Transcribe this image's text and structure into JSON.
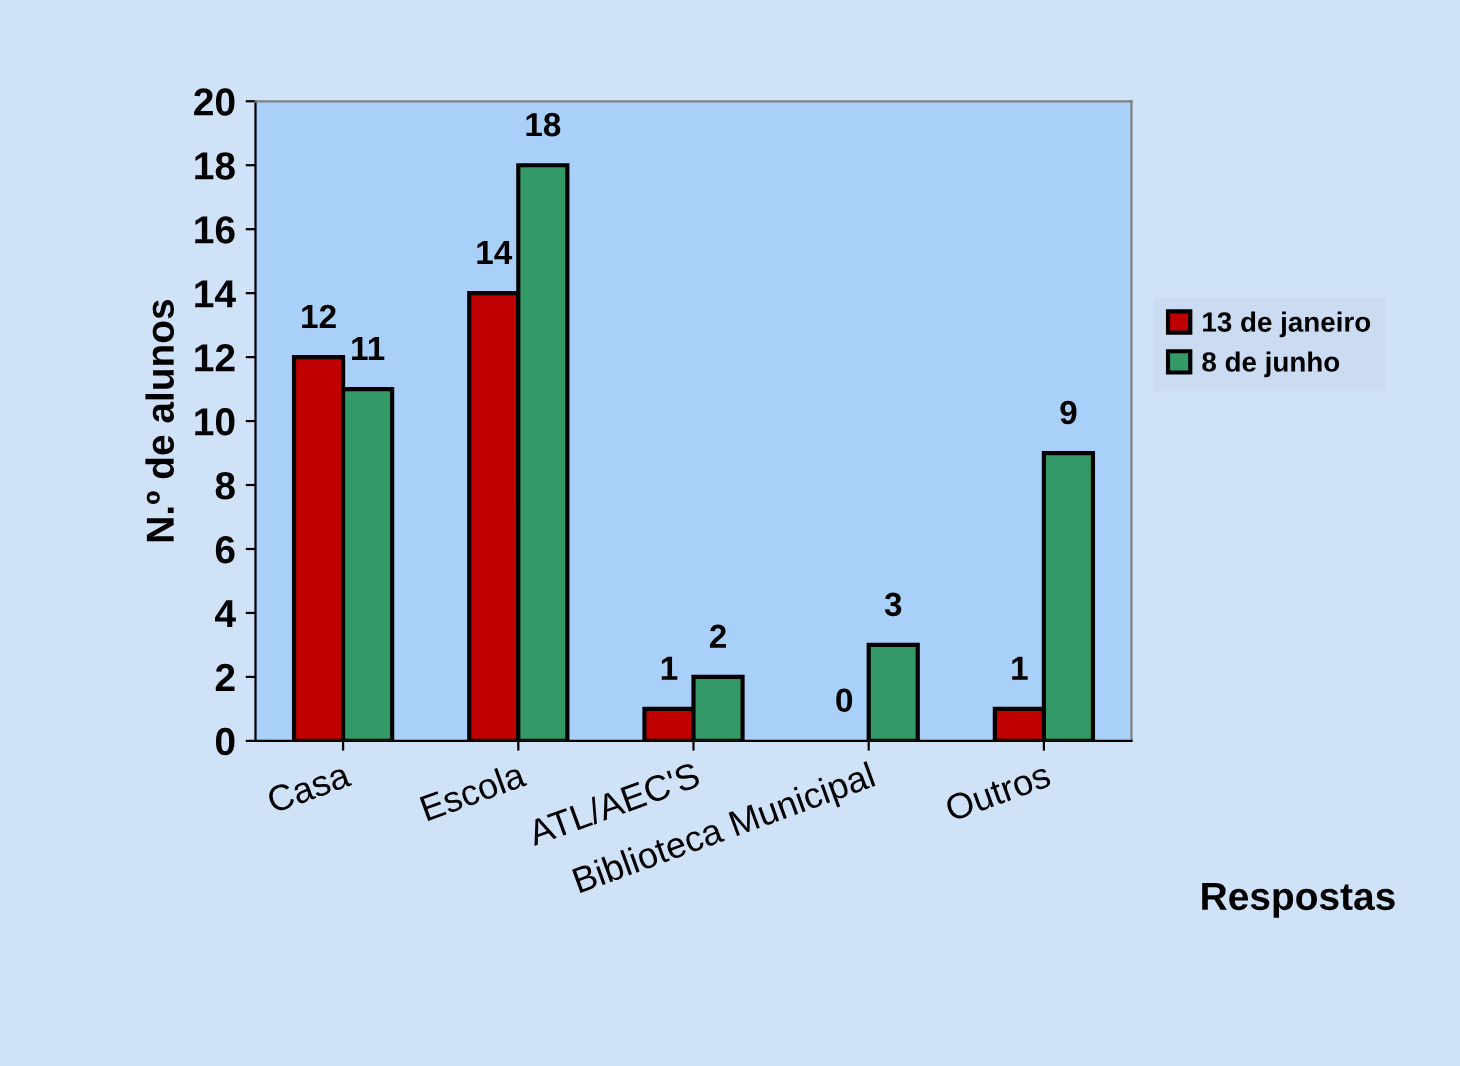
{
  "chart_data": {
    "type": "bar",
    "xlabel": "Respostas",
    "ylabel": "N.º de alunos",
    "categories": [
      "Casa",
      "Escola",
      "ATL/AEC'S",
      "Biblioteca Municipal",
      "Outros"
    ],
    "series": [
      {
        "name": "13 de janeiro",
        "color": "#c00000",
        "values": [
          12,
          14,
          1,
          0,
          1
        ]
      },
      {
        "name": "8 de junho",
        "color": "#339966",
        "values": [
          11,
          18,
          2,
          3,
          9
        ]
      }
    ],
    "ylim": [
      0,
      20
    ],
    "yticks": [
      0,
      2,
      4,
      6,
      8,
      10,
      12,
      14,
      16,
      18,
      20
    ],
    "grid": false,
    "legend": "right",
    "data_labels": true
  }
}
